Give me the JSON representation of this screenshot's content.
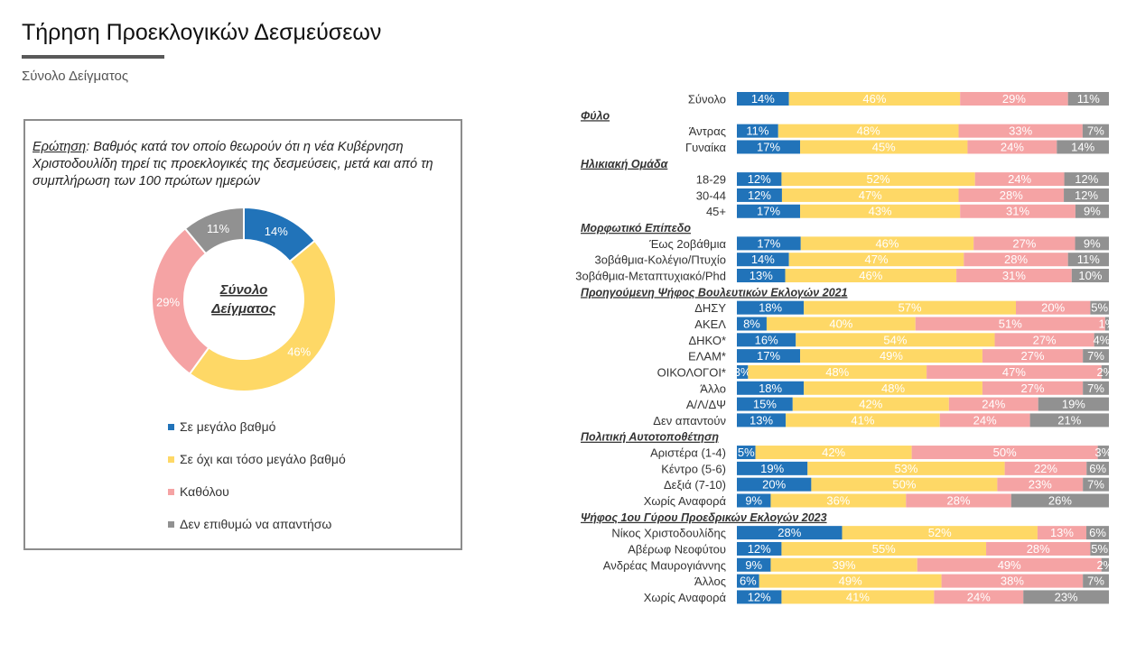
{
  "header": {
    "title": "Τήρηση Προεκλογικών Δεσμεύσεων",
    "subtitle": "Σύνολο Δείγματος"
  },
  "question": {
    "label": "Ερώτηση",
    "text": ": Βαθμός κατά τον οποίο θεωρούν ότι η νέα Κυβέρνηση Χριστοδουλίδη τηρεί τις προεκλογικές της δεσμεύσεις, μετά και από τη συμπλήρωση των 100 πρώτων ημερών"
  },
  "colors": {
    "blue": "#2173b9",
    "yellow": "#fed866",
    "pink": "#f5a3a4",
    "gray": "#919191"
  },
  "chart_data": [
    {
      "type": "pie",
      "style": "donut",
      "center_label": [
        "Σύνολο",
        "Δείγματος"
      ],
      "labels": [
        "Σε μεγάλο βαθμό",
        "Σε όχι και τόσο μεγάλο βαθμό",
        "Καθόλου",
        "Δεν επιθυμώ να απαντήσω"
      ],
      "values": [
        14,
        46,
        29,
        11
      ],
      "value_labels": [
        "14%",
        "46%",
        "29%",
        "11%"
      ]
    },
    {
      "type": "bar",
      "orientation": "horizontal",
      "stacked": true,
      "series_names": [
        "Σε μεγάλο βαθμό",
        "Σε όχι και τόσο μεγάλο βαθμό",
        "Καθόλου",
        "Δεν επιθυμώ να απαντήσω"
      ],
      "rows": [
        {
          "kind": "bar",
          "label": "Σύνολο",
          "values": [
            14,
            46,
            29,
            11
          ]
        },
        {
          "kind": "group",
          "label": "Φύλο"
        },
        {
          "kind": "bar",
          "label": "Άντρας",
          "values": [
            11,
            48,
            33,
            7
          ]
        },
        {
          "kind": "bar",
          "label": "Γυναίκα",
          "values": [
            17,
            45,
            24,
            14
          ]
        },
        {
          "kind": "group",
          "label": "Ηλικιακή Ομάδα"
        },
        {
          "kind": "bar",
          "label": "18-29",
          "values": [
            12,
            52,
            24,
            12
          ]
        },
        {
          "kind": "bar",
          "label": "30-44",
          "values": [
            12,
            47,
            28,
            12
          ]
        },
        {
          "kind": "bar",
          "label": "45+",
          "values": [
            17,
            43,
            31,
            9
          ]
        },
        {
          "kind": "group",
          "label": "Μορφωτικό Επίπεδο"
        },
        {
          "kind": "bar",
          "label": "Έως 2οβάθμια",
          "values": [
            17,
            46,
            27,
            9
          ]
        },
        {
          "kind": "bar",
          "label": "3οβάθμια-Κολέγιο/Πτυχίο",
          "values": [
            14,
            47,
            28,
            11
          ]
        },
        {
          "kind": "bar",
          "label": "3οβάθμια-Μεταπτυχιακό/Phd",
          "values": [
            13,
            46,
            31,
            10
          ]
        },
        {
          "kind": "group",
          "label": "Προηγούμενη Ψήφος Βουλευτικών Εκλογών 2021"
        },
        {
          "kind": "bar",
          "label": "ΔΗΣΥ",
          "values": [
            18,
            57,
            20,
            5
          ]
        },
        {
          "kind": "bar",
          "label": "ΑΚΕΛ",
          "values": [
            8,
            40,
            51,
            1
          ]
        },
        {
          "kind": "bar",
          "label": "ΔΗΚΟ*",
          "values": [
            16,
            54,
            27,
            4
          ]
        },
        {
          "kind": "bar",
          "label": "ΕΛΑΜ*",
          "values": [
            17,
            49,
            27,
            7
          ]
        },
        {
          "kind": "bar",
          "label": "ΟΙΚΟΛΟΓΟΙ*",
          "values": [
            3,
            48,
            47,
            2
          ]
        },
        {
          "kind": "bar",
          "label": "Άλλο",
          "values": [
            18,
            48,
            27,
            7
          ]
        },
        {
          "kind": "bar",
          "label": "Α/Λ/ΔΨ",
          "values": [
            15,
            42,
            24,
            19
          ]
        },
        {
          "kind": "bar",
          "label": "Δεν απαντούν",
          "values": [
            13,
            41,
            24,
            21
          ]
        },
        {
          "kind": "group",
          "label": "Πολιτική Αυτοτοποθέτηση"
        },
        {
          "kind": "bar",
          "label": "Αριστέρα (1-4)",
          "values": [
            5,
            42,
            50,
            3
          ]
        },
        {
          "kind": "bar",
          "label": "Κέντρο (5-6)",
          "values": [
            19,
            53,
            22,
            6
          ]
        },
        {
          "kind": "bar",
          "label": "Δεξιά (7-10)",
          "values": [
            20,
            50,
            23,
            7
          ]
        },
        {
          "kind": "bar",
          "label": "Χωρίς Αναφορά",
          "values": [
            9,
            36,
            28,
            26
          ]
        },
        {
          "kind": "group",
          "label": "Ψήφος 1ου Γύρου Προεδρικών Εκλογών 2023"
        },
        {
          "kind": "bar",
          "label": "Νίκος Χριστοδουλίδης",
          "values": [
            28,
            52,
            13,
            6
          ]
        },
        {
          "kind": "bar",
          "label": "Αβέρωφ Νεοφύτου",
          "values": [
            12,
            55,
            28,
            5
          ]
        },
        {
          "kind": "bar",
          "label": "Ανδρέας Μαυρογιάννης",
          "values": [
            9,
            39,
            49,
            2
          ]
        },
        {
          "kind": "bar",
          "label": "Άλλος",
          "values": [
            6,
            49,
            38,
            7
          ]
        },
        {
          "kind": "bar",
          "label": "Χωρίς Αναφορά",
          "values": [
            12,
            41,
            24,
            23
          ]
        }
      ]
    }
  ]
}
